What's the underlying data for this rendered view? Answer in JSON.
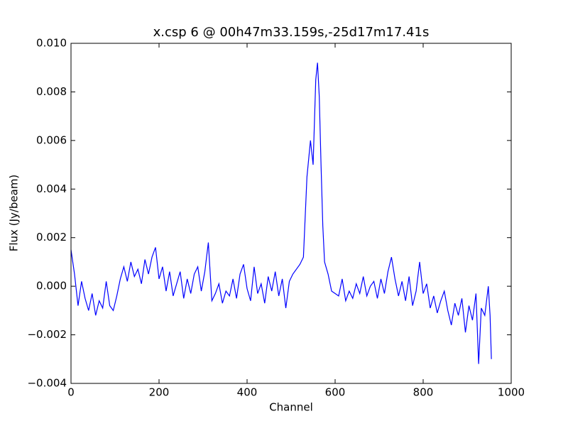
{
  "chart_data": {
    "type": "line",
    "title": "x.csp 6 @ 00h47m33.159s,-25d17m17.41s",
    "xlabel": "Channel",
    "ylabel": "Flux (Jy/beam)",
    "xlim": [
      0,
      1000
    ],
    "xticks": [
      0,
      200,
      400,
      600,
      800,
      1000
    ],
    "ylim": [
      -0.004,
      0.01
    ],
    "yticks": [
      {
        "value": -0.004,
        "label": "−0.004"
      },
      {
        "value": -0.002,
        "label": "−0.002"
      },
      {
        "value": 0,
        "label": "0.000"
      },
      0.002,
      0.004,
      0.006,
      0.008,
      {
        "value": 0.01,
        "label": "0.010"
      }
    ],
    "grid": false,
    "x": [
      0,
      8,
      16,
      24,
      32,
      40,
      48,
      56,
      64,
      72,
      80,
      88,
      96,
      104,
      112,
      120,
      128,
      136,
      144,
      152,
      160,
      168,
      176,
      184,
      192,
      200,
      208,
      216,
      224,
      232,
      240,
      248,
      256,
      264,
      272,
      280,
      288,
      296,
      304,
      312,
      320,
      328,
      336,
      344,
      352,
      360,
      368,
      376,
      384,
      392,
      400,
      408,
      416,
      424,
      432,
      440,
      448,
      456,
      464,
      472,
      480,
      488,
      496,
      504,
      512,
      520,
      528,
      536,
      544,
      550,
      556,
      560,
      564,
      568,
      572,
      576,
      584,
      592,
      600,
      608,
      616,
      624,
      632,
      640,
      648,
      656,
      664,
      672,
      680,
      688,
      696,
      704,
      712,
      720,
      728,
      736,
      744,
      752,
      760,
      768,
      776,
      784,
      792,
      800,
      808,
      816,
      824,
      832,
      840,
      848,
      856,
      864,
      872,
      880,
      888,
      896,
      904,
      912,
      920,
      926,
      932,
      940,
      948,
      952,
      955
    ],
    "series": [
      {
        "name": "flux",
        "color": "#0000ff",
        "values": [
          0.0015,
          0.0005,
          -0.0008,
          0.0002,
          -0.0005,
          -0.001,
          -0.0003,
          -0.0012,
          -0.0006,
          -0.0009,
          0.0002,
          -0.0008,
          -0.001,
          -0.0004,
          0.0003,
          0.0008,
          0.0002,
          0.001,
          0.0004,
          0.0007,
          0.0001,
          0.0011,
          0.0005,
          0.0012,
          0.0016,
          0.0003,
          0.0008,
          -0.0002,
          0.0006,
          -0.0004,
          0.0001,
          0.0006,
          -0.0005,
          0.0003,
          -0.0003,
          0.0005,
          0.0008,
          -0.0002,
          0.0006,
          0.0018,
          -0.0006,
          -0.0003,
          0.0001,
          -0.0007,
          -0.0002,
          -0.0004,
          0.0003,
          -0.0005,
          0.0005,
          0.0009,
          -0.0001,
          -0.0006,
          0.0008,
          -0.0003,
          0.0001,
          -0.0007,
          0.0004,
          -0.0002,
          0.0006,
          -0.0004,
          0.0003,
          -0.0009,
          0.0002,
          0.0005,
          0.0007,
          0.0009,
          0.0012,
          0.0045,
          0.006,
          0.005,
          0.0085,
          0.0092,
          0.0078,
          0.005,
          0.0025,
          0.001,
          0.0005,
          -0.0002,
          -0.0003,
          -0.0004,
          0.0003,
          -0.0006,
          -0.0002,
          -0.0005,
          0.0001,
          -0.0003,
          0.0004,
          -0.0004,
          0,
          0.0002,
          -0.0005,
          0.0003,
          -0.0003,
          0.0006,
          0.0012,
          0.0003,
          -0.0004,
          0.0002,
          -0.0006,
          0.0004,
          -0.0008,
          -0.0002,
          0.001,
          -0.0003,
          0.0001,
          -0.0009,
          -0.0004,
          -0.0011,
          -0.0006,
          -0.0002,
          -0.001,
          -0.0016,
          -0.0007,
          -0.0012,
          -0.0005,
          -0.0019,
          -0.0008,
          -0.0014,
          -0.0003,
          -0.0032,
          -0.0009,
          -0.0012,
          0,
          -0.0012,
          -0.003
        ]
      }
    ]
  }
}
